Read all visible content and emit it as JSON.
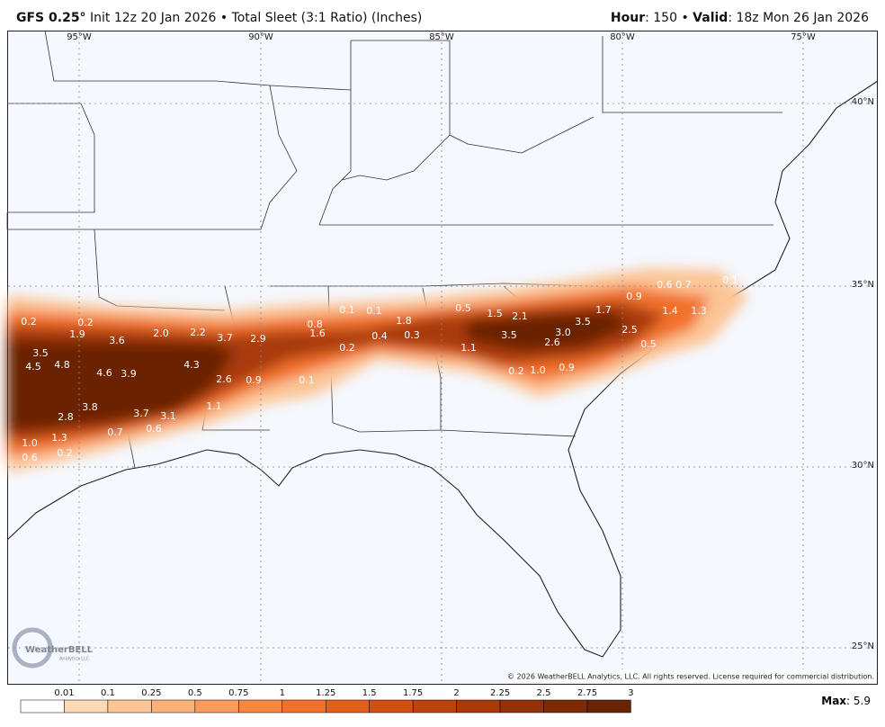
{
  "header": {
    "model": "GFS 0.25°",
    "info": "Init 12z 20 Jan 2026 • Total Sleet (3:1 Ratio) (Inches)",
    "hour_label": "Hour",
    "hour_value": ": 150 •",
    "valid_label": "Valid",
    "valid_value": ": 18z Mon 26 Jan 2026"
  },
  "map": {
    "longitudes": [
      "95°W",
      "90°W",
      "85°W",
      "80°W",
      "75°W"
    ],
    "latitudes": [
      "40°N",
      "35°N",
      "30°N",
      "25°N"
    ],
    "labels": [
      "0.2",
      "0.2",
      "1.9",
      "3.6",
      "2.0",
      "2.2",
      "3.7",
      "2.9",
      "3.5",
      "4.5",
      "4.8",
      "4.6",
      "3.9",
      "4.3",
      "2.6",
      "0.9",
      "3.8",
      "2.8",
      "3.7",
      "3.1",
      "1.1",
      "0.7",
      "0.6",
      "1.3",
      "1.0",
      "0.6",
      "0.2",
      "0.8",
      "1.6",
      "0.1",
      "0.1",
      "1.8",
      "0.4",
      "0.3",
      "0.2",
      "0.1",
      "0.5",
      "1.5",
      "2.1",
      "3.5",
      "1.1",
      "3.5",
      "1.7",
      "3.0",
      "2.6",
      "2.5",
      "0.5",
      "0.2",
      "1.0",
      "0.9",
      "0.9",
      "0.6",
      "0.7",
      "0.1",
      "1.4",
      "1.3"
    ],
    "copyright": "© 2026 WeatherBELL Analytics, LLC. All rights reserved. License required for commercial distribution.",
    "logo": "WeatherBELL",
    "logo_sub": "Analytics LLC"
  },
  "colorbar": {
    "ticks": [
      0.01,
      0.1,
      0.25,
      0.5,
      0.75,
      1,
      1.25,
      1.5,
      1.75,
      2,
      2.25,
      2.5,
      2.75,
      3
    ],
    "colors": [
      "#ffffff",
      "#fdd9b5",
      "#fcc596",
      "#fbb078",
      "#f99b5a",
      "#f7863e",
      "#f2712a",
      "#e45f1c",
      "#d24f12",
      "#bd430d",
      "#a83a0a",
      "#933108",
      "#7f2a06",
      "#6b2305"
    ]
  },
  "legend": {
    "max_label": "Max",
    "max_value": ": 5.9"
  }
}
